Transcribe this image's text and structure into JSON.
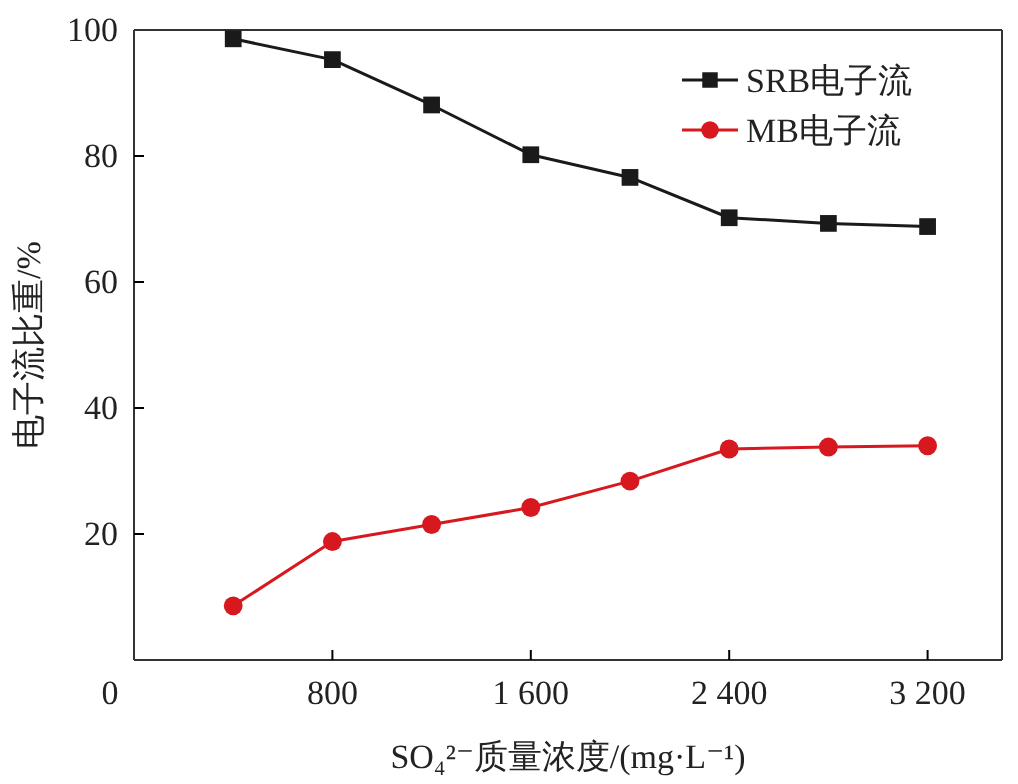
{
  "chart_data": {
    "type": "line",
    "xlabel": "SO₄²⁻质量浓度/(mg·L⁻¹)",
    "ylabel": "电子流比重/%",
    "x": [
      400,
      800,
      1200,
      1600,
      2000,
      2400,
      2800,
      3200
    ],
    "series": [
      {
        "name": "SRB电子流",
        "color": "#1a1a1a",
        "marker": "square",
        "values": [
          98.6,
          95.3,
          88.1,
          80.2,
          76.6,
          70.2,
          69.3,
          68.8
        ]
      },
      {
        "name": "MB电子流",
        "color": "#d7191f",
        "marker": "circle",
        "values": [
          8.6,
          18.8,
          21.5,
          24.2,
          28.4,
          33.5,
          33.8,
          34.0
        ]
      }
    ],
    "xlim": [
      0,
      3500
    ],
    "xticks": [
      0,
      800,
      {
        "value": 1600,
        "label": "1 600"
      },
      {
        "value": 2400,
        "label": "2 400"
      },
      {
        "value": 3200,
        "label": "3 200"
      }
    ],
    "ylim": [
      0,
      100
    ],
    "yticks": [
      20,
      40,
      60,
      80,
      100
    ],
    "grid": false,
    "legend": "top right",
    "line_style": "solid"
  }
}
